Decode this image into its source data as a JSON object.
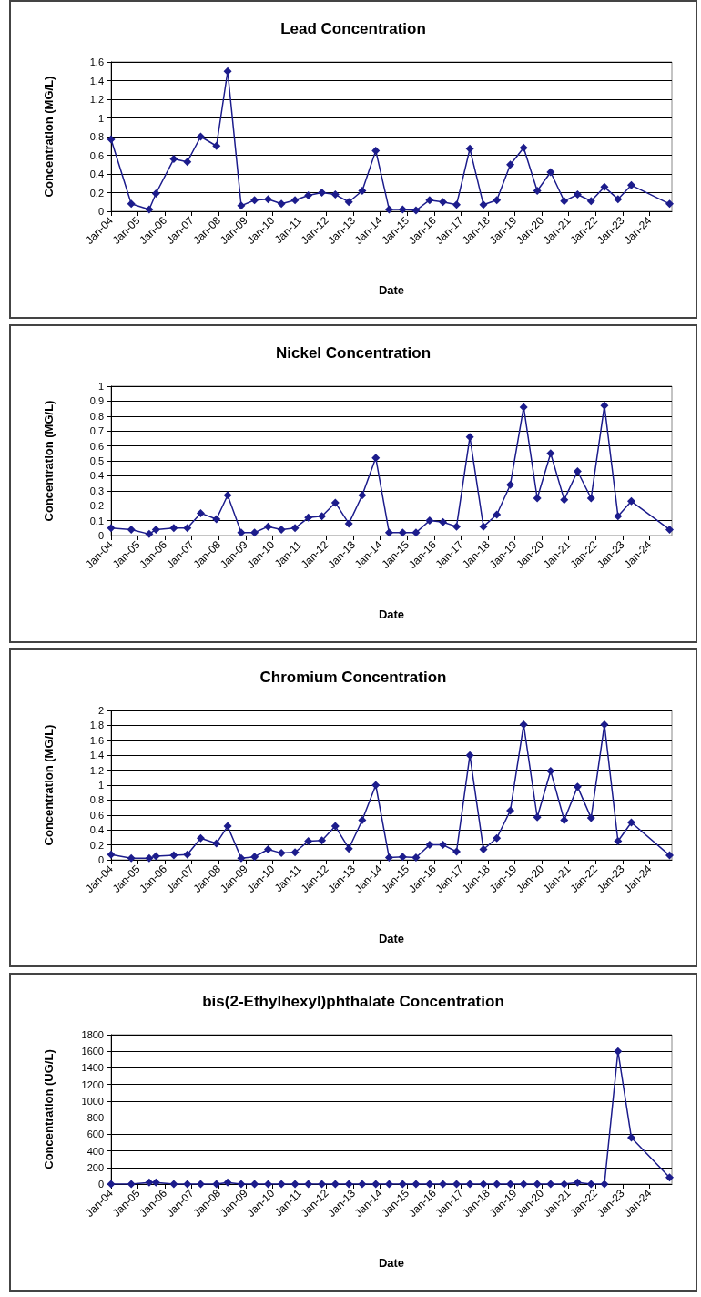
{
  "chart_data": [
    {
      "type": "line",
      "title": "Lead Concentration",
      "xlabel": "Date",
      "ylabel": "Concentration (MG/L)",
      "color": "#1c1c8c",
      "marker": "diamond",
      "grid": "y",
      "x": [
        "2004-01",
        "2004-10",
        "2005-06",
        "2005-09",
        "2006-05",
        "2006-11",
        "2007-05",
        "2007-12",
        "2008-05",
        "2008-11",
        "2009-05",
        "2009-11",
        "2010-05",
        "2010-11",
        "2011-05",
        "2011-11",
        "2012-05",
        "2012-11",
        "2013-05",
        "2013-11",
        "2014-05",
        "2014-11",
        "2015-05",
        "2015-11",
        "2016-05",
        "2016-11",
        "2017-05",
        "2017-11",
        "2018-05",
        "2018-11",
        "2019-05",
        "2019-11",
        "2020-05",
        "2020-11",
        "2021-05",
        "2021-11",
        "2022-05",
        "2022-11",
        "2023-05",
        "2024-10"
      ],
      "values": [
        0.77,
        0.08,
        0.02,
        0.19,
        0.56,
        0.53,
        0.8,
        0.7,
        1.5,
        0.06,
        0.12,
        0.13,
        0.08,
        0.12,
        0.17,
        0.2,
        0.18,
        0.1,
        0.22,
        0.65,
        0.02,
        0.02,
        0.01,
        0.12,
        0.1,
        0.07,
        0.67,
        0.07,
        0.12,
        0.5,
        0.68,
        0.22,
        0.42,
        0.11,
        0.18,
        0.11,
        0.26,
        0.13,
        0.28,
        0.08
      ],
      "xlim": [
        "2004-01",
        "2024-11"
      ],
      "xticks": [
        {
          "value": "2004-01",
          "label": "Jan-04"
        },
        {
          "value": "2005-01",
          "label": "Jan-05"
        },
        {
          "value": "2006-01",
          "label": "Jan-06"
        },
        {
          "value": "2007-01",
          "label": "Jan-07"
        },
        {
          "value": "2008-01",
          "label": "Jan-08"
        },
        {
          "value": "2009-01",
          "label": "Jan-09"
        },
        {
          "value": "2010-01",
          "label": "Jan-10"
        },
        {
          "value": "2011-01",
          "label": "Jan-11"
        },
        {
          "value": "2012-01",
          "label": "Jan-12"
        },
        {
          "value": "2013-01",
          "label": "Jan-13"
        },
        {
          "value": "2014-01",
          "label": "Jan-14"
        },
        {
          "value": "2015-01",
          "label": "Jan-15"
        },
        {
          "value": "2016-01",
          "label": "Jan-16"
        },
        {
          "value": "2017-01",
          "label": "Jan-17"
        },
        {
          "value": "2018-01",
          "label": "Jan-18"
        },
        {
          "value": "2019-01",
          "label": "Jan-19"
        },
        {
          "value": "2020-01",
          "label": "Jan-20"
        },
        {
          "value": "2021-01",
          "label": "Jan-21"
        },
        {
          "value": "2022-01",
          "label": "Jan-22"
        },
        {
          "value": "2023-01",
          "label": "Jan-23"
        },
        {
          "value": "2024-01",
          "label": "Jan-24"
        }
      ],
      "ylim": [
        0,
        1.6
      ],
      "yticks": [
        0,
        0.2,
        0.4,
        0.6,
        0.8,
        1,
        1.2,
        1.4,
        1.6
      ]
    },
    {
      "type": "line",
      "title": "Nickel Concentration",
      "xlabel": "Date",
      "ylabel": "Concentration (MG/L)",
      "color": "#1c1c8c",
      "marker": "diamond",
      "grid": "y",
      "x": [
        "2004-01",
        "2004-10",
        "2005-06",
        "2005-09",
        "2006-05",
        "2006-11",
        "2007-05",
        "2007-12",
        "2008-05",
        "2008-11",
        "2009-05",
        "2009-11",
        "2010-05",
        "2010-11",
        "2011-05",
        "2011-11",
        "2012-05",
        "2012-11",
        "2013-05",
        "2013-11",
        "2014-05",
        "2014-11",
        "2015-05",
        "2015-11",
        "2016-05",
        "2016-11",
        "2017-05",
        "2017-11",
        "2018-05",
        "2018-11",
        "2019-05",
        "2019-11",
        "2020-05",
        "2020-11",
        "2021-05",
        "2021-11",
        "2022-05",
        "2022-11",
        "2023-05",
        "2024-10"
      ],
      "values": [
        0.05,
        0.04,
        0.01,
        0.04,
        0.05,
        0.05,
        0.15,
        0.11,
        0.27,
        0.02,
        0.02,
        0.06,
        0.04,
        0.05,
        0.12,
        0.13,
        0.22,
        0.08,
        0.27,
        0.52,
        0.02,
        0.02,
        0.02,
        0.1,
        0.09,
        0.06,
        0.66,
        0.06,
        0.14,
        0.34,
        0.86,
        0.25,
        0.55,
        0.24,
        0.43,
        0.25,
        0.87,
        0.13,
        0.23,
        0.04
      ],
      "xlim": [
        "2004-01",
        "2024-11"
      ],
      "xticks": [
        {
          "value": "2004-01",
          "label": "Jan-04"
        },
        {
          "value": "2005-01",
          "label": "Jan-05"
        },
        {
          "value": "2006-01",
          "label": "Jan-06"
        },
        {
          "value": "2007-01",
          "label": "Jan-07"
        },
        {
          "value": "2008-01",
          "label": "Jan-08"
        },
        {
          "value": "2009-01",
          "label": "Jan-09"
        },
        {
          "value": "2010-01",
          "label": "Jan-10"
        },
        {
          "value": "2011-01",
          "label": "Jan-11"
        },
        {
          "value": "2012-01",
          "label": "Jan-12"
        },
        {
          "value": "2013-01",
          "label": "Jan-13"
        },
        {
          "value": "2014-01",
          "label": "Jan-14"
        },
        {
          "value": "2015-01",
          "label": "Jan-15"
        },
        {
          "value": "2016-01",
          "label": "Jan-16"
        },
        {
          "value": "2017-01",
          "label": "Jan-17"
        },
        {
          "value": "2018-01",
          "label": "Jan-18"
        },
        {
          "value": "2019-01",
          "label": "Jan-19"
        },
        {
          "value": "2020-01",
          "label": "Jan-20"
        },
        {
          "value": "2021-01",
          "label": "Jan-21"
        },
        {
          "value": "2022-01",
          "label": "Jan-22"
        },
        {
          "value": "2023-01",
          "label": "Jan-23"
        },
        {
          "value": "2024-01",
          "label": "Jan-24"
        }
      ],
      "ylim": [
        0,
        1
      ],
      "yticks": [
        0,
        0.1,
        0.2,
        0.3,
        0.4,
        0.5,
        0.6,
        0.7,
        0.8,
        0.9,
        1
      ]
    },
    {
      "type": "line",
      "title": "Chromium Concentration",
      "xlabel": "Date",
      "ylabel": "Concentration (MG/L)",
      "color": "#1c1c8c",
      "marker": "diamond",
      "grid": "y",
      "x": [
        "2004-01",
        "2004-10",
        "2005-06",
        "2005-09",
        "2006-05",
        "2006-11",
        "2007-05",
        "2007-12",
        "2008-05",
        "2008-11",
        "2009-05",
        "2009-11",
        "2010-05",
        "2010-11",
        "2011-05",
        "2011-11",
        "2012-05",
        "2012-11",
        "2013-05",
        "2013-11",
        "2014-05",
        "2014-11",
        "2015-05",
        "2015-11",
        "2016-05",
        "2016-11",
        "2017-05",
        "2017-11",
        "2018-05",
        "2018-11",
        "2019-05",
        "2019-11",
        "2020-05",
        "2020-11",
        "2021-05",
        "2021-11",
        "2022-05",
        "2022-11",
        "2023-05",
        "2024-10"
      ],
      "values": [
        0.07,
        0.02,
        0.02,
        0.05,
        0.06,
        0.07,
        0.29,
        0.22,
        0.45,
        0.02,
        0.04,
        0.14,
        0.09,
        0.1,
        0.25,
        0.26,
        0.45,
        0.15,
        0.53,
        1,
        0.03,
        0.04,
        0.03,
        0.2,
        0.2,
        0.11,
        1.4,
        0.14,
        0.29,
        0.66,
        1.81,
        0.57,
        1.19,
        0.53,
        0.98,
        0.56,
        1.81,
        0.25,
        0.5,
        0.06
      ],
      "xlim": [
        "2004-01",
        "2024-11"
      ],
      "xticks": [
        {
          "value": "2004-01",
          "label": "Jan-04"
        },
        {
          "value": "2005-01",
          "label": "Jan-05"
        },
        {
          "value": "2006-01",
          "label": "Jan-06"
        },
        {
          "value": "2007-01",
          "label": "Jan-07"
        },
        {
          "value": "2008-01",
          "label": "Jan-08"
        },
        {
          "value": "2009-01",
          "label": "Jan-09"
        },
        {
          "value": "2010-01",
          "label": "Jan-10"
        },
        {
          "value": "2011-01",
          "label": "Jan-11"
        },
        {
          "value": "2012-01",
          "label": "Jan-12"
        },
        {
          "value": "2013-01",
          "label": "Jan-13"
        },
        {
          "value": "2014-01",
          "label": "Jan-14"
        },
        {
          "value": "2015-01",
          "label": "Jan-15"
        },
        {
          "value": "2016-01",
          "label": "Jan-16"
        },
        {
          "value": "2017-01",
          "label": "Jan-17"
        },
        {
          "value": "2018-01",
          "label": "Jan-18"
        },
        {
          "value": "2019-01",
          "label": "Jan-19"
        },
        {
          "value": "2020-01",
          "label": "Jan-20"
        },
        {
          "value": "2021-01",
          "label": "Jan-21"
        },
        {
          "value": "2022-01",
          "label": "Jan-22"
        },
        {
          "value": "2023-01",
          "label": "Jan-23"
        },
        {
          "value": "2024-01",
          "label": "Jan-24"
        }
      ],
      "ylim": [
        0,
        2
      ],
      "yticks": [
        0,
        0.2,
        0.4,
        0.6,
        0.8,
        1,
        1.2,
        1.4,
        1.6,
        1.8,
        2
      ]
    },
    {
      "type": "line",
      "title": "bis(2-Ethylhexyl)phthalate Concentration",
      "xlabel": "Date",
      "ylabel": "Concentration (UG/L)",
      "color": "#1c1c8c",
      "marker": "diamond",
      "grid": "y",
      "x": [
        "2004-01",
        "2004-10",
        "2005-06",
        "2005-09",
        "2006-05",
        "2006-11",
        "2007-05",
        "2007-12",
        "2008-05",
        "2008-11",
        "2009-05",
        "2009-11",
        "2010-05",
        "2010-11",
        "2011-05",
        "2011-11",
        "2012-05",
        "2012-11",
        "2013-05",
        "2013-11",
        "2014-05",
        "2014-11",
        "2015-05",
        "2015-11",
        "2016-05",
        "2016-11",
        "2017-05",
        "2017-11",
        "2018-05",
        "2018-11",
        "2019-05",
        "2019-11",
        "2020-05",
        "2020-11",
        "2021-05",
        "2021-11",
        "2022-05",
        "2022-11",
        "2023-05",
        "2024-10"
      ],
      "values": [
        0,
        0,
        20,
        20,
        0,
        0,
        0,
        0,
        20,
        0,
        0,
        0,
        0,
        0,
        0,
        0,
        0,
        0,
        0,
        0,
        0,
        0,
        0,
        0,
        0,
        0,
        0,
        0,
        0,
        0,
        0,
        0,
        0,
        0,
        20,
        0,
        0,
        1600,
        560,
        80
      ],
      "xlim": [
        "2004-01",
        "2024-11"
      ],
      "xticks": [
        {
          "value": "2004-01",
          "label": "Jan-04"
        },
        {
          "value": "2005-01",
          "label": "Jan-05"
        },
        {
          "value": "2006-01",
          "label": "Jan-06"
        },
        {
          "value": "2007-01",
          "label": "Jan-07"
        },
        {
          "value": "2008-01",
          "label": "Jan-08"
        },
        {
          "value": "2009-01",
          "label": "Jan-09"
        },
        {
          "value": "2010-01",
          "label": "Jan-10"
        },
        {
          "value": "2011-01",
          "label": "Jan-11"
        },
        {
          "value": "2012-01",
          "label": "Jan-12"
        },
        {
          "value": "2013-01",
          "label": "Jan-13"
        },
        {
          "value": "2014-01",
          "label": "Jan-14"
        },
        {
          "value": "2015-01",
          "label": "Jan-15"
        },
        {
          "value": "2016-01",
          "label": "Jan-16"
        },
        {
          "value": "2017-01",
          "label": "Jan-17"
        },
        {
          "value": "2018-01",
          "label": "Jan-18"
        },
        {
          "value": "2019-01",
          "label": "Jan-19"
        },
        {
          "value": "2020-01",
          "label": "Jan-20"
        },
        {
          "value": "2021-01",
          "label": "Jan-21"
        },
        {
          "value": "2022-01",
          "label": "Jan-22"
        },
        {
          "value": "2023-01",
          "label": "Jan-23"
        },
        {
          "value": "2024-01",
          "label": "Jan-24"
        }
      ],
      "ylim": [
        0,
        1800
      ],
      "yticks": [
        0,
        200,
        400,
        600,
        800,
        1000,
        1200,
        1400,
        1600,
        1800
      ]
    }
  ]
}
